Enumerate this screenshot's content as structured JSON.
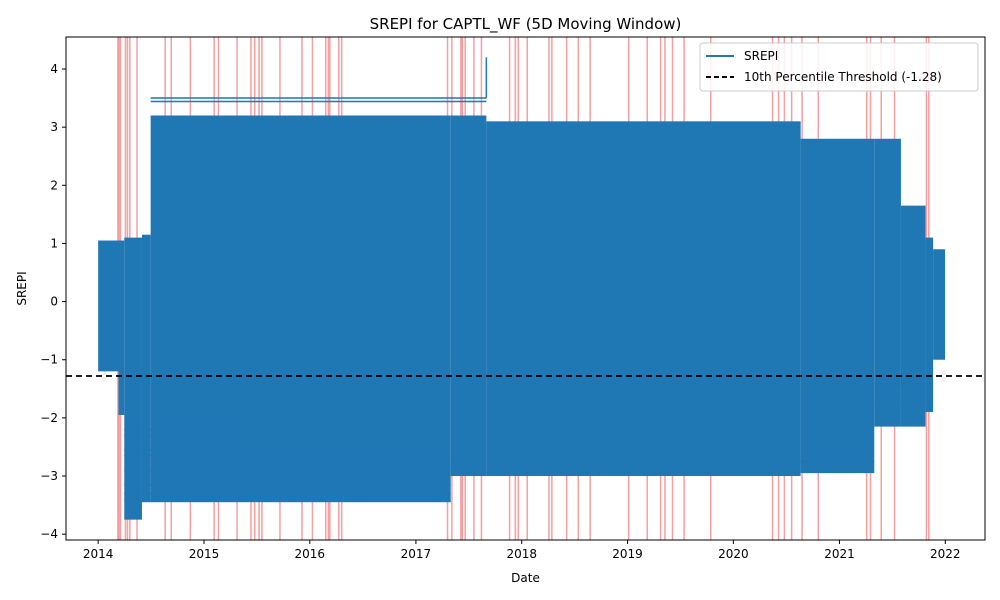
{
  "chart_data": {
    "type": "line",
    "title": "SREPI for CAPTL_WF (5D Moving Window)",
    "xlabel": "Date",
    "ylabel": "SREPI",
    "xlim": [
      "2013-09-12",
      "2022-05-18"
    ],
    "ylim": [
      -4.1,
      4.55
    ],
    "x_ticks": [
      "2014",
      "2015",
      "2016",
      "2017",
      "2018",
      "2019",
      "2020",
      "2021",
      "2022"
    ],
    "y_ticks": [
      -4,
      -3,
      -2,
      -1,
      0,
      1,
      2,
      3,
      4
    ],
    "legend_position": "top-right",
    "grid": false,
    "series": [
      {
        "name": "SREPI",
        "color": "#1f77b4",
        "segments": [
          {
            "start": "2014-01-01",
            "end": "2014-03-12",
            "min": -1.2,
            "max": 1.05
          },
          {
            "start": "2014-03-12",
            "end": "2014-04-01",
            "min": -1.95,
            "max": 1.05
          },
          {
            "start": "2014-04-01",
            "end": "2014-06-01",
            "min": -3.75,
            "max": 1.1
          },
          {
            "start": "2014-06-01",
            "end": "2014-07-01",
            "min": -3.45,
            "max": 1.15
          },
          {
            "start": "2014-07-01",
            "end": "2017-05-01",
            "min": -3.45,
            "max": 3.2
          },
          {
            "start": "2017-05-01",
            "end": "2017-09-01",
            "min": -3.0,
            "max": 3.2
          },
          {
            "start": "2017-09-01",
            "end": "2020-08-20",
            "min": -3.0,
            "max": 3.1
          },
          {
            "start": "2020-08-20",
            "end": "2021-05-01",
            "min": -2.95,
            "max": 2.8
          },
          {
            "start": "2021-05-01",
            "end": "2021-08-01",
            "min": -2.15,
            "max": 2.8
          },
          {
            "start": "2021-08-01",
            "end": "2021-10-25",
            "min": -2.15,
            "max": 1.65
          },
          {
            "start": "2021-10-25",
            "end": "2021-11-20",
            "min": -1.9,
            "max": 1.1
          },
          {
            "start": "2021-11-20",
            "end": "2021-12-31",
            "min": -1.0,
            "max": 0.9
          }
        ],
        "horizontal_lines": [
          {
            "start": "2014-07-01",
            "end": "2017-09-01",
            "y": 3.5
          },
          {
            "start": "2014-07-01",
            "end": "2017-09-01",
            "y": 3.44
          },
          {
            "start": "2014-04-01",
            "end": "2017-05-01",
            "y": -3.42
          },
          {
            "start": "2014-04-01",
            "end": "2017-05-01",
            "y": -3.3
          },
          {
            "start": "2014-04-01",
            "end": "2017-05-01",
            "y": -3.15
          },
          {
            "start": "2014-04-01",
            "end": "2015-04-01",
            "y": -2.2
          },
          {
            "start": "2014-04-01",
            "end": "2015-04-01",
            "y": -2.3
          },
          {
            "start": "2014-04-01",
            "end": "2015-06-01",
            "y": -2.55
          },
          {
            "start": "2014-04-01",
            "end": "2015-06-01",
            "y": -2.65
          },
          {
            "start": "2014-04-01",
            "end": "2014-09-01",
            "y": -2.9
          },
          {
            "start": "2014-09-01",
            "end": "2017-05-01",
            "y": -2.8
          },
          {
            "start": "2020-08-20",
            "end": "2021-05-01",
            "y": -2.75
          },
          {
            "start": "2021-05-01",
            "end": "2021-10-25",
            "y": -1.8
          },
          {
            "start": "2021-05-01",
            "end": "2021-10-25",
            "y": -1.42
          }
        ],
        "spike": {
          "date": "2017-09-01",
          "from": 3.5,
          "to": 4.2
        }
      }
    ],
    "threshold": {
      "label": "10th Percentile Threshold (-1.28)",
      "value": -1.28,
      "color": "#000000"
    },
    "drought_periods": {
      "color": "#f08080",
      "dates": [
        "2014-03-10",
        "2014-03-14",
        "2014-03-19",
        "2014-04-05",
        "2014-04-12",
        "2014-04-20",
        "2014-05-15",
        "2014-08-20",
        "2014-09-10",
        "2014-11-15",
        "2015-02-05",
        "2015-02-20",
        "2015-04-25",
        "2015-06-12",
        "2015-06-25",
        "2015-07-10",
        "2015-07-20",
        "2015-09-20",
        "2015-12-05",
        "2016-01-10",
        "2016-02-25",
        "2016-03-05",
        "2016-03-10",
        "2016-04-10",
        "2016-04-20",
        "2017-04-20",
        "2017-05-05",
        "2017-06-05",
        "2017-06-10",
        "2017-06-20",
        "2017-07-20",
        "2017-08-15",
        "2017-11-20",
        "2017-12-10",
        "2017-12-20",
        "2018-01-20",
        "2018-04-05",
        "2018-04-15",
        "2018-06-05",
        "2018-07-15",
        "2018-08-25",
        "2019-01-05",
        "2019-03-10",
        "2019-04-25",
        "2019-05-10",
        "2019-06-05",
        "2019-07-15",
        "2019-10-15",
        "2020-05-15",
        "2020-06-05",
        "2020-06-25",
        "2020-07-20",
        "2020-08-25",
        "2020-10-20",
        "2021-04-05",
        "2021-04-18",
        "2021-05-25",
        "2021-07-10",
        "2021-10-28",
        "2021-11-05"
      ]
    }
  }
}
